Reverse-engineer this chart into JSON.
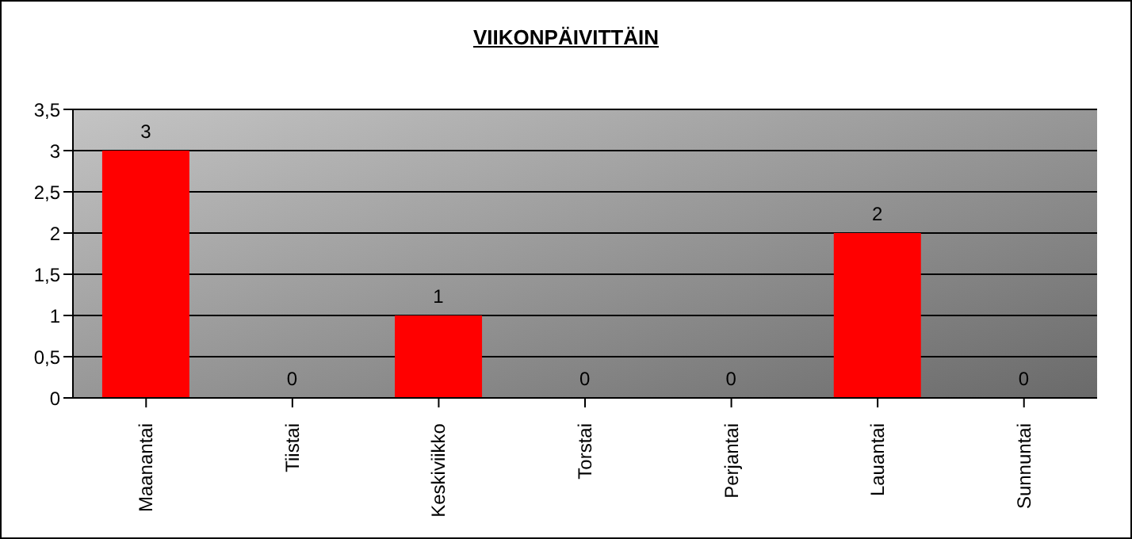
{
  "chart_data": {
    "type": "bar",
    "title": "VIIKONPÄIVITTÄIN",
    "categories": [
      "Maanantai",
      "Tiistai",
      "Keskiviikko",
      "Torstai",
      "Perjantai",
      "Lauantai",
      "Sunnuntai"
    ],
    "values": [
      3,
      0,
      1,
      0,
      0,
      2,
      0
    ],
    "color": "#ff0000",
    "ylim": [
      0,
      3.5
    ],
    "yticks": [
      0,
      {
        "value": 0.5,
        "label": "0,5"
      },
      1,
      {
        "value": 1.5,
        "label": "1,5"
      },
      2,
      {
        "value": 2.5,
        "label": "2,5"
      },
      3,
      {
        "value": 3.5,
        "label": "3,5"
      }
    ],
    "grid": "y",
    "data_labels": true
  }
}
